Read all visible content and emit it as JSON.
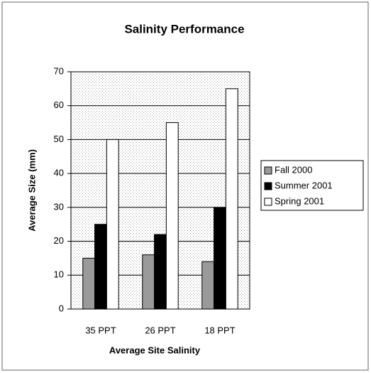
{
  "chart_data": {
    "type": "bar",
    "title": "Salinity Performance",
    "x_label": "Average Site Salinity",
    "y_label": "Average Size (mm)",
    "categories": [
      "35 PPT",
      "26 PPT",
      "18 PPT"
    ],
    "series": [
      {
        "name": "Fall 2000",
        "color": "#9a9a9a",
        "values": [
          15,
          16,
          14
        ]
      },
      {
        "name": "Summer 2001",
        "color": "#000000",
        "values": [
          25,
          22,
          30
        ]
      },
      {
        "name": "Spring 2001",
        "color": "#ffffff",
        "values": [
          50,
          55,
          65
        ]
      }
    ],
    "ylim": [
      0,
      70
    ],
    "yticks": [
      0,
      10,
      20,
      30,
      40,
      50,
      60,
      70
    ],
    "grid": true,
    "legend": "right"
  }
}
